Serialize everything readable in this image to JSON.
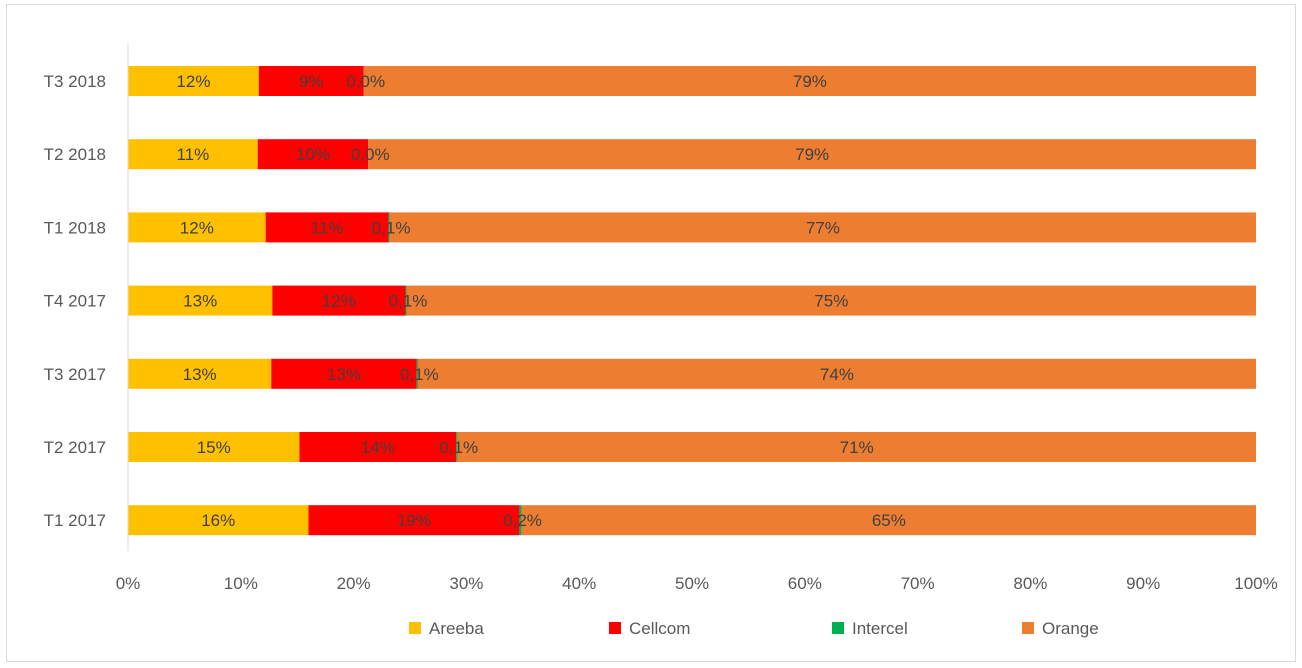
{
  "chart_data": {
    "type": "bar",
    "orientation": "horizontal",
    "stacking": "percent",
    "title": "",
    "xlabel": "",
    "ylabel": "",
    "xlim": [
      0,
      100
    ],
    "x_ticks": [
      "0%",
      "10%",
      "20%",
      "30%",
      "40%",
      "50%",
      "60%",
      "70%",
      "80%",
      "90%",
      "100%"
    ],
    "grid": false,
    "legend_position": "bottom",
    "categories": [
      "T3 2018",
      "T2 2018",
      "T1 2018",
      "T4 2017",
      "T3 2017",
      "T2 2017",
      "T1 2017"
    ],
    "series": [
      {
        "name": "Areeba",
        "color": "#FFC000",
        "values": [
          11.6,
          11.5,
          12.2,
          12.8,
          12.7,
          15.2,
          16.0
        ],
        "labels": [
          "12%",
          "11%",
          "12%",
          "13%",
          "13%",
          "15%",
          "16%"
        ]
      },
      {
        "name": "Cellcom",
        "color": "#FF0000",
        "values": [
          9.3,
          9.8,
          10.9,
          11.8,
          12.9,
          13.9,
          18.7
        ],
        "labels": [
          "9%",
          "10%",
          "11%",
          "12%",
          "13%",
          "14%",
          "19%"
        ]
      },
      {
        "name": "Intercel",
        "color": "#00B050",
        "values": [
          0.0,
          0.0,
          0.1,
          0.1,
          0.1,
          0.1,
          0.2
        ],
        "labels": [
          "0,0%",
          "0,0%",
          "0,1%",
          "0,1%",
          "0,1%",
          "0,1%",
          "0,2%"
        ]
      },
      {
        "name": "Orange",
        "color": "#ED7D31",
        "values": [
          79.1,
          78.7,
          76.8,
          75.3,
          74.3,
          70.8,
          65.1
        ],
        "labels": [
          "79%",
          "79%",
          "77%",
          "75%",
          "74%",
          "71%",
          "65%"
        ]
      }
    ]
  }
}
